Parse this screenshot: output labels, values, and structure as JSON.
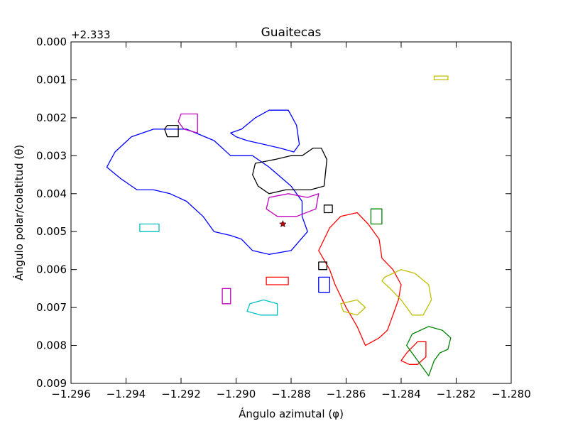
{
  "chart_data": {
    "type": "line",
    "title": "Guaitecas",
    "xlabel": "Ángulo azimutal (φ)",
    "ylabel": "Ángulo polar/colatitud (θ)",
    "y_offset_label": "+2.333",
    "xlim": [
      -1.296,
      -1.28
    ],
    "ylim": [
      0.009,
      0.0
    ],
    "y_inverted": true,
    "grid": false,
    "x_ticks": [
      -1.296,
      -1.294,
      -1.292,
      -1.29,
      -1.288,
      -1.286,
      -1.284,
      -1.282,
      -1.28
    ],
    "x_tick_labels": [
      "−1.296",
      "−1.294",
      "−1.292",
      "−1.290",
      "−1.288",
      "−1.286",
      "−1.284",
      "−1.282",
      "−1.280"
    ],
    "y_ticks": [
      0.0,
      0.001,
      0.002,
      0.003,
      0.004,
      0.005,
      0.006,
      0.007,
      0.008,
      0.009
    ],
    "y_tick_labels": [
      "0.000",
      "0.001",
      "0.002",
      "0.003",
      "0.004",
      "0.005",
      "0.006",
      "0.007",
      "0.008",
      "0.009"
    ],
    "colors": {
      "blue": "#0000ff",
      "red": "#ff0000",
      "black": "#000000",
      "magenta": "#bf00bf",
      "yellow": "#bfbf00",
      "cyan": "#00bfbf",
      "green": "#008000"
    },
    "marker": {
      "type": "star",
      "x": -1.2883,
      "y": 0.0048,
      "color": "#bf0000"
    },
    "series": [
      {
        "color": "blue",
        "closed": true,
        "x": [
          -1.2938,
          -1.293,
          -1.2918,
          -1.2908,
          -1.2902,
          -1.2894,
          -1.2888,
          -1.288,
          -1.2876,
          -1.2876,
          -1.2874,
          -1.288,
          -1.2888,
          -1.2894,
          -1.2898,
          -1.2902,
          -1.2908,
          -1.2912,
          -1.2918,
          -1.2924,
          -1.293,
          -1.2936,
          -1.2942,
          -1.2947,
          -1.2944
        ],
        "y": [
          0.0025,
          0.0023,
          0.0023,
          0.0026,
          0.003,
          0.003,
          0.0033,
          0.0038,
          0.0042,
          0.0046,
          0.005,
          0.0055,
          0.0056,
          0.0055,
          0.0052,
          0.0051,
          0.005,
          0.0046,
          0.0042,
          0.004,
          0.0039,
          0.0039,
          0.0036,
          0.0033,
          0.0029
        ]
      },
      {
        "color": "blue",
        "closed": true,
        "x": [
          -1.2898,
          -1.2893,
          -1.2888,
          -1.2881,
          -1.2878,
          -1.2877,
          -1.2879,
          -1.2884,
          -1.289,
          -1.2896,
          -1.29,
          -1.2902
        ],
        "y": [
          0.0023,
          0.002,
          0.0018,
          0.0018,
          0.0022,
          0.0027,
          0.0029,
          0.0028,
          0.0027,
          0.0026,
          0.0025,
          0.0024
        ]
      },
      {
        "color": "black",
        "closed": true,
        "x": [
          -1.2893,
          -1.2886,
          -1.288,
          -1.2876,
          -1.2872,
          -1.2869,
          -1.2867,
          -1.2868,
          -1.2873,
          -1.2882,
          -1.2888,
          -1.2892,
          -1.2894
        ],
        "y": [
          0.0032,
          0.0031,
          0.003,
          0.003,
          0.0028,
          0.0028,
          0.0031,
          0.0038,
          0.0039,
          0.0039,
          0.004,
          0.0038,
          0.0035
        ]
      },
      {
        "color": "magenta",
        "closed": true,
        "x": [
          -1.2888,
          -1.2881,
          -1.2874,
          -1.287,
          -1.2871,
          -1.2878,
          -1.2885,
          -1.2889
        ],
        "y": [
          0.0041,
          0.004,
          0.0041,
          0.004,
          0.0044,
          0.0046,
          0.0046,
          0.0044
        ]
      },
      {
        "color": "red",
        "closed": true,
        "x": [
          -1.2866,
          -1.2862,
          -1.2856,
          -1.2852,
          -1.2848,
          -1.2847,
          -1.2843,
          -1.284,
          -1.2841,
          -1.2843,
          -1.2845,
          -1.2848,
          -1.2853,
          -1.2856,
          -1.286,
          -1.2864,
          -1.2866,
          -1.287
        ],
        "y": [
          0.0049,
          0.0046,
          0.0045,
          0.0048,
          0.0052,
          0.0057,
          0.006,
          0.0064,
          0.0068,
          0.0072,
          0.0076,
          0.0078,
          0.008,
          0.0075,
          0.007,
          0.0064,
          0.006,
          0.0055
        ]
      },
      {
        "color": "red",
        "closed": true,
        "x": [
          -1.2838,
          -1.2834,
          -1.2831,
          -1.2831,
          -1.2834,
          -1.2837,
          -1.284
        ],
        "y": [
          0.0082,
          0.0079,
          0.0079,
          0.0083,
          0.0085,
          0.0085,
          0.0084
        ]
      },
      {
        "color": "yellow",
        "closed": true,
        "x": [
          -1.2846,
          -1.284,
          -1.2835,
          -1.283,
          -1.2829,
          -1.2832,
          -1.2836,
          -1.284,
          -1.2844,
          -1.2847
        ],
        "y": [
          0.0062,
          0.006,
          0.0061,
          0.0064,
          0.0068,
          0.0072,
          0.0072,
          0.0068,
          0.0065,
          0.0063
        ]
      },
      {
        "color": "yellow",
        "closed": true,
        "x": [
          -1.2862,
          -1.2856,
          -1.2853,
          -1.2856,
          -1.2861
        ],
        "y": [
          0.0069,
          0.0068,
          0.007,
          0.0072,
          0.0071
        ]
      },
      {
        "color": "green",
        "closed": true,
        "x": [
          -1.2836,
          -1.283,
          -1.2825,
          -1.2822,
          -1.2823,
          -1.2826,
          -1.2828,
          -1.283,
          -1.2832,
          -1.2835,
          -1.2838
        ],
        "y": [
          0.0077,
          0.0075,
          0.0076,
          0.0078,
          0.0081,
          0.0082,
          0.0084,
          0.0088,
          0.0086,
          0.0083,
          0.008
        ]
      },
      {
        "color": "cyan",
        "closed": true,
        "x": [
          -1.2895,
          -1.289,
          -1.2885,
          -1.2885,
          -1.2891,
          -1.2896
        ],
        "y": [
          0.0069,
          0.0068,
          0.0069,
          0.0072,
          0.0072,
          0.0071
        ]
      },
      {
        "color": "magenta",
        "closed": true,
        "x": [
          -1.292,
          -1.2914,
          -1.2914,
          -1.2919,
          -1.2921
        ],
        "y": [
          0.0019,
          0.0019,
          0.0024,
          0.0023,
          0.0021
        ]
      },
      {
        "color": "black",
        "closed": true,
        "x": [
          -1.2925,
          -1.2921,
          -1.2921,
          -1.2925,
          -1.2926
        ],
        "y": [
          0.0022,
          0.0022,
          0.0025,
          0.0025,
          0.0023
        ]
      },
      {
        "color": "cyan",
        "closed": true,
        "x": [
          -1.2935,
          -1.2928,
          -1.2928,
          -1.2935
        ],
        "y": [
          0.0048,
          0.0048,
          0.005,
          0.005
        ]
      },
      {
        "color": "yellow",
        "closed": true,
        "x": [
          -1.2828,
          -1.2823,
          -1.2823,
          -1.2828
        ],
        "y": [
          0.0009,
          0.0009,
          0.001,
          0.001
        ]
      },
      {
        "color": "green",
        "closed": true,
        "x": [
          -1.2851,
          -1.2847,
          -1.2847,
          -1.2851
        ],
        "y": [
          0.0044,
          0.0044,
          0.0048,
          0.0048
        ]
      },
      {
        "color": "red",
        "closed": true,
        "x": [
          -1.2889,
          -1.2881,
          -1.2881,
          -1.2889
        ],
        "y": [
          0.0062,
          0.0062,
          0.0064,
          0.0064
        ]
      },
      {
        "color": "magenta",
        "closed": true,
        "x": [
          -1.2905,
          -1.2902,
          -1.2902,
          -1.2905
        ],
        "y": [
          0.0065,
          0.0065,
          0.0069,
          0.0069
        ]
      },
      {
        "color": "blue",
        "closed": true,
        "x": [
          -1.287,
          -1.2866,
          -1.2866,
          -1.287
        ],
        "y": [
          0.0062,
          0.0062,
          0.0066,
          0.0066
        ]
      },
      {
        "color": "black",
        "closed": true,
        "x": [
          -1.287,
          -1.2867,
          -1.2867,
          -1.287
        ],
        "y": [
          0.0058,
          0.0058,
          0.006,
          0.006
        ]
      },
      {
        "color": "black",
        "closed": true,
        "x": [
          -1.2868,
          -1.2865,
          -1.2865,
          -1.2868
        ],
        "y": [
          0.0043,
          0.0043,
          0.0045,
          0.0045
        ]
      }
    ]
  }
}
